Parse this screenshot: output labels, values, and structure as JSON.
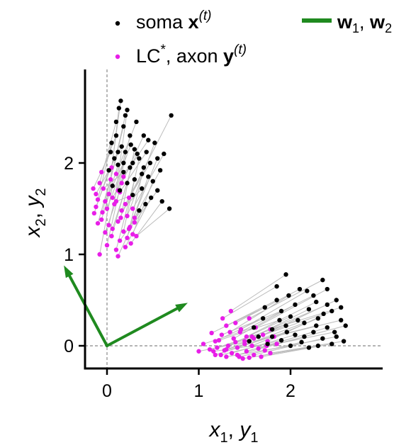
{
  "chart_data": {
    "type": "scatter",
    "xlabel": {
      "base1": "x",
      "sub1": "1",
      "sep": ", ",
      "base2": "y",
      "sub2": "1"
    },
    "ylabel": {
      "base1": "x",
      "sub1": "2",
      "sep": ", ",
      "base2": "y",
      "sub2": "2"
    },
    "xlim": [
      -0.25,
      3.0
    ],
    "ylim": [
      -0.25,
      3.0
    ],
    "xticks": [
      0,
      1,
      2
    ],
    "yticks": [
      0,
      1,
      2
    ],
    "grid": false,
    "reference_lines": {
      "x": 0,
      "y": 0,
      "style": "dashed",
      "color": "#888888"
    },
    "legend": {
      "placement": "top",
      "soma": {
        "text": "soma ",
        "bold": "x",
        "sup": "(t)"
      },
      "lc": {
        "text": "LC",
        "star": "*",
        "mid": ", axon ",
        "bold": "y",
        "sup": "(t)"
      },
      "w": {
        "b1": "w",
        "s1": "1",
        "sep": ", ",
        "b2": "w",
        "s2": "2"
      }
    },
    "colors": {
      "soma": "#000000",
      "lc": "#e81ee8",
      "w": "#1f8a1f",
      "link": "#bbbbbb"
    },
    "vectors": [
      {
        "name": "w1",
        "x": 0.88,
        "y": 0.47
      },
      {
        "name": "w2",
        "x": -0.47,
        "y": 0.88
      }
    ],
    "pairs": [
      {
        "soma": [
          0.1,
          2.45
        ],
        "lc": [
          -0.08,
          1.78
        ]
      },
      {
        "soma": [
          0.13,
          2.6
        ],
        "lc": [
          0.02,
          1.66
        ]
      },
      {
        "soma": [
          0.15,
          2.68
        ],
        "lc": [
          0.05,
          1.95
        ]
      },
      {
        "soma": [
          0.22,
          2.58
        ],
        "lc": [
          0.08,
          1.55
        ]
      },
      {
        "soma": [
          0.18,
          2.4
        ],
        "lc": [
          -0.05,
          1.46
        ]
      },
      {
        "soma": [
          0.25,
          2.3
        ],
        "lc": [
          0.12,
          1.7
        ]
      },
      {
        "soma": [
          0.05,
          2.22
        ],
        "lc": [
          -0.1,
          1.6
        ]
      },
      {
        "soma": [
          0.3,
          2.15
        ],
        "lc": [
          0.15,
          1.4
        ]
      },
      {
        "soma": [
          0.2,
          2.12
        ],
        "lc": [
          0.02,
          1.32
        ]
      },
      {
        "soma": [
          0.35,
          2.05
        ],
        "lc": [
          0.18,
          1.25
        ]
      },
      {
        "soma": [
          0.08,
          2.05
        ],
        "lc": [
          -0.12,
          1.52
        ]
      },
      {
        "soma": [
          0.28,
          2.0
        ],
        "lc": [
          0.05,
          1.2
        ]
      },
      {
        "soma": [
          0.12,
          1.98
        ],
        "lc": [
          -0.06,
          1.38
        ]
      },
      {
        "soma": [
          0.4,
          1.95
        ],
        "lc": [
          0.22,
          1.18
        ]
      },
      {
        "soma": [
          0.02,
          1.92
        ],
        "lc": [
          -0.14,
          1.45
        ]
      },
      {
        "soma": [
          0.18,
          1.9
        ],
        "lc": [
          0.0,
          1.1
        ]
      },
      {
        "soma": [
          0.45,
          1.85
        ],
        "lc": [
          0.25,
          1.3
        ]
      },
      {
        "soma": [
          0.3,
          1.82
        ],
        "lc": [
          0.1,
          1.05
        ]
      },
      {
        "soma": [
          0.22,
          1.78
        ],
        "lc": [
          0.06,
          1.28
        ]
      },
      {
        "soma": [
          0.5,
          1.8
        ],
        "lc": [
          0.28,
          1.22
        ]
      },
      {
        "soma": [
          0.06,
          1.75
        ],
        "lc": [
          -0.08,
          1.0
        ]
      },
      {
        "soma": [
          0.38,
          1.72
        ],
        "lc": [
          0.16,
          1.48
        ]
      },
      {
        "soma": [
          0.14,
          1.7
        ],
        "lc": [
          -0.02,
          1.24
        ]
      },
      {
        "soma": [
          0.55,
          1.7
        ],
        "lc": [
          0.3,
          1.35
        ]
      },
      {
        "soma": [
          0.28,
          1.65
        ],
        "lc": [
          0.1,
          1.58
        ]
      },
      {
        "soma": [
          0.48,
          1.62
        ],
        "lc": [
          0.2,
          1.08
        ]
      },
      {
        "soma": [
          0.6,
          1.58
        ],
        "lc": [
          0.26,
          1.12
        ]
      },
      {
        "soma": [
          0.42,
          1.55
        ],
        "lc": [
          0.14,
          1.15
        ]
      },
      {
        "soma": [
          0.68,
          1.5
        ],
        "lc": [
          0.32,
          1.2
        ]
      },
      {
        "soma": [
          0.35,
          1.48
        ],
        "lc": [
          0.12,
          0.98
        ]
      },
      {
        "soma": [
          0.7,
          2.52
        ],
        "lc": [
          0.24,
          1.62
        ]
      },
      {
        "soma": [
          0.52,
          2.22
        ],
        "lc": [
          0.22,
          1.42
        ]
      },
      {
        "soma": [
          0.62,
          2.1
        ],
        "lc": [
          0.28,
          1.5
        ]
      },
      {
        "soma": [
          0.45,
          2.25
        ],
        "lc": [
          0.18,
          1.85
        ]
      },
      {
        "soma": [
          0.32,
          2.45
        ],
        "lc": [
          0.1,
          1.88
        ]
      },
      {
        "soma": [
          0.25,
          1.95
        ],
        "lc": [
          -0.04,
          1.72
        ]
      },
      {
        "soma": [
          0.16,
          2.18
        ],
        "lc": [
          -0.12,
          1.66
        ]
      },
      {
        "soma": [
          0.4,
          2.3
        ],
        "lc": [
          0.16,
          1.78
        ]
      },
      {
        "soma": [
          0.58,
          1.92
        ],
        "lc": [
          0.3,
          1.4
        ]
      },
      {
        "soma": [
          0.1,
          2.3
        ],
        "lc": [
          -0.06,
          1.9
        ]
      },
      {
        "soma": [
          0.33,
          2.1
        ],
        "lc": [
          0.06,
          1.62
        ]
      },
      {
        "soma": [
          0.47,
          2.0
        ],
        "lc": [
          0.2,
          1.55
        ]
      },
      {
        "soma": [
          0.2,
          2.52
        ],
        "lc": [
          0.04,
          1.82
        ]
      },
      {
        "soma": [
          0.26,
          2.2
        ],
        "lc": [
          0.0,
          1.5
        ]
      },
      {
        "soma": [
          0.12,
          2.12
        ],
        "lc": [
          -0.1,
          1.34
        ]
      },
      {
        "soma": [
          0.38,
          1.88
        ],
        "lc": [
          0.12,
          1.36
        ]
      },
      {
        "soma": [
          0.04,
          2.12
        ],
        "lc": [
          -0.15,
          1.72
        ]
      },
      {
        "soma": [
          0.55,
          2.05
        ],
        "lc": [
          0.24,
          1.28
        ]
      },
      {
        "soma": [
          0.18,
          2.0
        ],
        "lc": [
          -0.02,
          1.58
        ]
      },
      {
        "soma": [
          0.43,
          2.12
        ],
        "lc": [
          0.14,
          1.68
        ]
      },
      {
        "soma": [
          1.95,
          0.78
        ],
        "lc": [
          1.35,
          0.38
        ]
      },
      {
        "soma": [
          2.1,
          0.62
        ],
        "lc": [
          1.4,
          0.25
        ]
      },
      {
        "soma": [
          2.35,
          0.72
        ],
        "lc": [
          1.55,
          0.3
        ]
      },
      {
        "soma": [
          2.4,
          0.62
        ],
        "lc": [
          1.62,
          0.2
        ]
      },
      {
        "soma": [
          2.25,
          0.55
        ],
        "lc": [
          1.45,
          0.15
        ]
      },
      {
        "soma": [
          1.85,
          0.5
        ],
        "lc": [
          1.3,
          0.22
        ]
      },
      {
        "soma": [
          2.5,
          0.5
        ],
        "lc": [
          1.7,
          0.12
        ]
      },
      {
        "soma": [
          2.05,
          0.45
        ],
        "lc": [
          1.38,
          0.08
        ]
      },
      {
        "soma": [
          2.2,
          0.4
        ],
        "lc": [
          1.5,
          0.05
        ]
      },
      {
        "soma": [
          1.9,
          0.38
        ],
        "lc": [
          1.25,
          0.12
        ]
      },
      {
        "soma": [
          2.45,
          0.38
        ],
        "lc": [
          1.75,
          0.05
        ]
      },
      {
        "soma": [
          2.0,
          0.32
        ],
        "lc": [
          1.32,
          0.0
        ]
      },
      {
        "soma": [
          2.3,
          0.3
        ],
        "lc": [
          1.58,
          0.0
        ]
      },
      {
        "soma": [
          1.7,
          0.3
        ],
        "lc": [
          1.18,
          0.05
        ]
      },
      {
        "soma": [
          2.55,
          0.28
        ],
        "lc": [
          1.82,
          0.1
        ]
      },
      {
        "soma": [
          2.15,
          0.25
        ],
        "lc": [
          1.42,
          -0.02
        ]
      },
      {
        "soma": [
          1.95,
          0.22
        ],
        "lc": [
          1.28,
          -0.05
        ]
      },
      {
        "soma": [
          2.4,
          0.2
        ],
        "lc": [
          1.65,
          -0.03
        ]
      },
      {
        "soma": [
          1.8,
          0.18
        ],
        "lc": [
          1.2,
          -0.02
        ]
      },
      {
        "soma": [
          2.25,
          0.15
        ],
        "lc": [
          1.52,
          -0.06
        ]
      },
      {
        "soma": [
          2.05,
          0.12
        ],
        "lc": [
          1.36,
          -0.08
        ]
      },
      {
        "soma": [
          2.5,
          0.1
        ],
        "lc": [
          1.72,
          -0.05
        ]
      },
      {
        "soma": [
          1.65,
          0.1
        ],
        "lc": [
          1.12,
          -0.04
        ]
      },
      {
        "soma": [
          2.35,
          0.08
        ],
        "lc": [
          1.6,
          -0.1
        ]
      },
      {
        "soma": [
          1.9,
          0.06
        ],
        "lc": [
          1.24,
          -0.1
        ]
      },
      {
        "soma": [
          2.58,
          0.05
        ],
        "lc": [
          1.78,
          -0.08
        ]
      },
      {
        "soma": [
          2.12,
          0.04
        ],
        "lc": [
          1.44,
          -0.12
        ]
      },
      {
        "soma": [
          2.45,
          0.02
        ],
        "lc": [
          1.68,
          -0.12
        ]
      },
      {
        "soma": [
          1.75,
          0.02
        ],
        "lc": [
          1.16,
          -0.06
        ]
      },
      {
        "soma": [
          2.3,
          0.0
        ],
        "lc": [
          1.55,
          -0.13
        ]
      },
      {
        "soma": [
          2.0,
          0.0
        ],
        "lc": [
          1.3,
          -0.12
        ]
      },
      {
        "soma": [
          2.2,
          -0.02
        ],
        "lc": [
          1.48,
          -0.14
        ]
      },
      {
        "soma": [
          1.6,
          0.2
        ],
        "lc": [
          1.05,
          0.02
        ]
      },
      {
        "soma": [
          2.6,
          0.22
        ],
        "lc": [
          1.85,
          0.02
        ]
      },
      {
        "soma": [
          2.4,
          0.45
        ],
        "lc": [
          1.58,
          0.1
        ]
      },
      {
        "soma": [
          1.85,
          0.65
        ],
        "lc": [
          1.26,
          0.3
        ]
      },
      {
        "soma": [
          2.18,
          0.6
        ],
        "lc": [
          1.46,
          0.18
        ]
      },
      {
        "soma": [
          2.55,
          0.42
        ],
        "lc": [
          1.78,
          0.18
        ]
      },
      {
        "soma": [
          1.98,
          0.55
        ],
        "lc": [
          1.34,
          0.15
        ]
      },
      {
        "soma": [
          2.28,
          0.48
        ],
        "lc": [
          1.52,
          0.1
        ]
      },
      {
        "soma": [
          1.72,
          0.42
        ],
        "lc": [
          1.14,
          0.14
        ]
      },
      {
        "soma": [
          2.08,
          0.28
        ],
        "lc": [
          1.4,
          0.04
        ]
      },
      {
        "soma": [
          2.36,
          0.35
        ],
        "lc": [
          1.6,
          0.08
        ]
      },
      {
        "soma": [
          1.88,
          0.28
        ],
        "lc": [
          1.22,
          0.06
        ]
      },
      {
        "soma": [
          2.48,
          0.15
        ],
        "lc": [
          1.74,
          0.0
        ]
      },
      {
        "soma": [
          1.55,
          0.05
        ],
        "lc": [
          1.0,
          -0.06
        ]
      },
      {
        "soma": [
          2.15,
          0.1
        ],
        "lc": [
          1.42,
          -0.1
        ]
      },
      {
        "soma": [
          1.8,
          0.1
        ],
        "lc": [
          1.18,
          -0.1
        ]
      },
      {
        "soma": [
          2.28,
          0.22
        ],
        "lc": [
          1.5,
          0.02
        ]
      },
      {
        "soma": [
          1.96,
          0.15
        ],
        "lc": [
          1.3,
          -0.04
        ]
      }
    ]
  }
}
